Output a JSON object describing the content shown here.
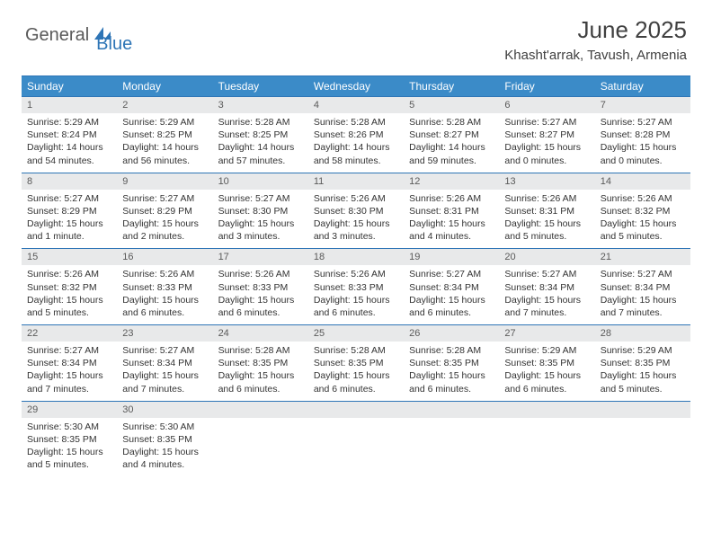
{
  "logo": {
    "text1": "General",
    "text2": "Blue"
  },
  "title": "June 2025",
  "location": "Khasht'arrak, Tavush, Armenia",
  "colors": {
    "header_bar": "#3b8bc8",
    "border": "#2e75b6",
    "daynum_bg": "#e8e9ea",
    "text_dark": "#404040",
    "text_body": "#333333",
    "logo_gray": "#5a5a5a",
    "logo_blue": "#2e75b6"
  },
  "weekdays": [
    "Sunday",
    "Monday",
    "Tuesday",
    "Wednesday",
    "Thursday",
    "Friday",
    "Saturday"
  ],
  "weeks": [
    [
      {
        "n": "1",
        "sr": "5:29 AM",
        "ss": "8:24 PM",
        "dl": "14 hours and 54 minutes."
      },
      {
        "n": "2",
        "sr": "5:29 AM",
        "ss": "8:25 PM",
        "dl": "14 hours and 56 minutes."
      },
      {
        "n": "3",
        "sr": "5:28 AM",
        "ss": "8:25 PM",
        "dl": "14 hours and 57 minutes."
      },
      {
        "n": "4",
        "sr": "5:28 AM",
        "ss": "8:26 PM",
        "dl": "14 hours and 58 minutes."
      },
      {
        "n": "5",
        "sr": "5:28 AM",
        "ss": "8:27 PM",
        "dl": "14 hours and 59 minutes."
      },
      {
        "n": "6",
        "sr": "5:27 AM",
        "ss": "8:27 PM",
        "dl": "15 hours and 0 minutes."
      },
      {
        "n": "7",
        "sr": "5:27 AM",
        "ss": "8:28 PM",
        "dl": "15 hours and 0 minutes."
      }
    ],
    [
      {
        "n": "8",
        "sr": "5:27 AM",
        "ss": "8:29 PM",
        "dl": "15 hours and 1 minute."
      },
      {
        "n": "9",
        "sr": "5:27 AM",
        "ss": "8:29 PM",
        "dl": "15 hours and 2 minutes."
      },
      {
        "n": "10",
        "sr": "5:27 AM",
        "ss": "8:30 PM",
        "dl": "15 hours and 3 minutes."
      },
      {
        "n": "11",
        "sr": "5:26 AM",
        "ss": "8:30 PM",
        "dl": "15 hours and 3 minutes."
      },
      {
        "n": "12",
        "sr": "5:26 AM",
        "ss": "8:31 PM",
        "dl": "15 hours and 4 minutes."
      },
      {
        "n": "13",
        "sr": "5:26 AM",
        "ss": "8:31 PM",
        "dl": "15 hours and 5 minutes."
      },
      {
        "n": "14",
        "sr": "5:26 AM",
        "ss": "8:32 PM",
        "dl": "15 hours and 5 minutes."
      }
    ],
    [
      {
        "n": "15",
        "sr": "5:26 AM",
        "ss": "8:32 PM",
        "dl": "15 hours and 5 minutes."
      },
      {
        "n": "16",
        "sr": "5:26 AM",
        "ss": "8:33 PM",
        "dl": "15 hours and 6 minutes."
      },
      {
        "n": "17",
        "sr": "5:26 AM",
        "ss": "8:33 PM",
        "dl": "15 hours and 6 minutes."
      },
      {
        "n": "18",
        "sr": "5:26 AM",
        "ss": "8:33 PM",
        "dl": "15 hours and 6 minutes."
      },
      {
        "n": "19",
        "sr": "5:27 AM",
        "ss": "8:34 PM",
        "dl": "15 hours and 6 minutes."
      },
      {
        "n": "20",
        "sr": "5:27 AM",
        "ss": "8:34 PM",
        "dl": "15 hours and 7 minutes."
      },
      {
        "n": "21",
        "sr": "5:27 AM",
        "ss": "8:34 PM",
        "dl": "15 hours and 7 minutes."
      }
    ],
    [
      {
        "n": "22",
        "sr": "5:27 AM",
        "ss": "8:34 PM",
        "dl": "15 hours and 7 minutes."
      },
      {
        "n": "23",
        "sr": "5:27 AM",
        "ss": "8:34 PM",
        "dl": "15 hours and 7 minutes."
      },
      {
        "n": "24",
        "sr": "5:28 AM",
        "ss": "8:35 PM",
        "dl": "15 hours and 6 minutes."
      },
      {
        "n": "25",
        "sr": "5:28 AM",
        "ss": "8:35 PM",
        "dl": "15 hours and 6 minutes."
      },
      {
        "n": "26",
        "sr": "5:28 AM",
        "ss": "8:35 PM",
        "dl": "15 hours and 6 minutes."
      },
      {
        "n": "27",
        "sr": "5:29 AM",
        "ss": "8:35 PM",
        "dl": "15 hours and 6 minutes."
      },
      {
        "n": "28",
        "sr": "5:29 AM",
        "ss": "8:35 PM",
        "dl": "15 hours and 5 minutes."
      }
    ],
    [
      {
        "n": "29",
        "sr": "5:30 AM",
        "ss": "8:35 PM",
        "dl": "15 hours and 5 minutes."
      },
      {
        "n": "30",
        "sr": "5:30 AM",
        "ss": "8:35 PM",
        "dl": "15 hours and 4 minutes."
      },
      null,
      null,
      null,
      null,
      null
    ]
  ],
  "labels": {
    "sunrise": "Sunrise: ",
    "sunset": "Sunset: ",
    "daylight": "Daylight: "
  }
}
